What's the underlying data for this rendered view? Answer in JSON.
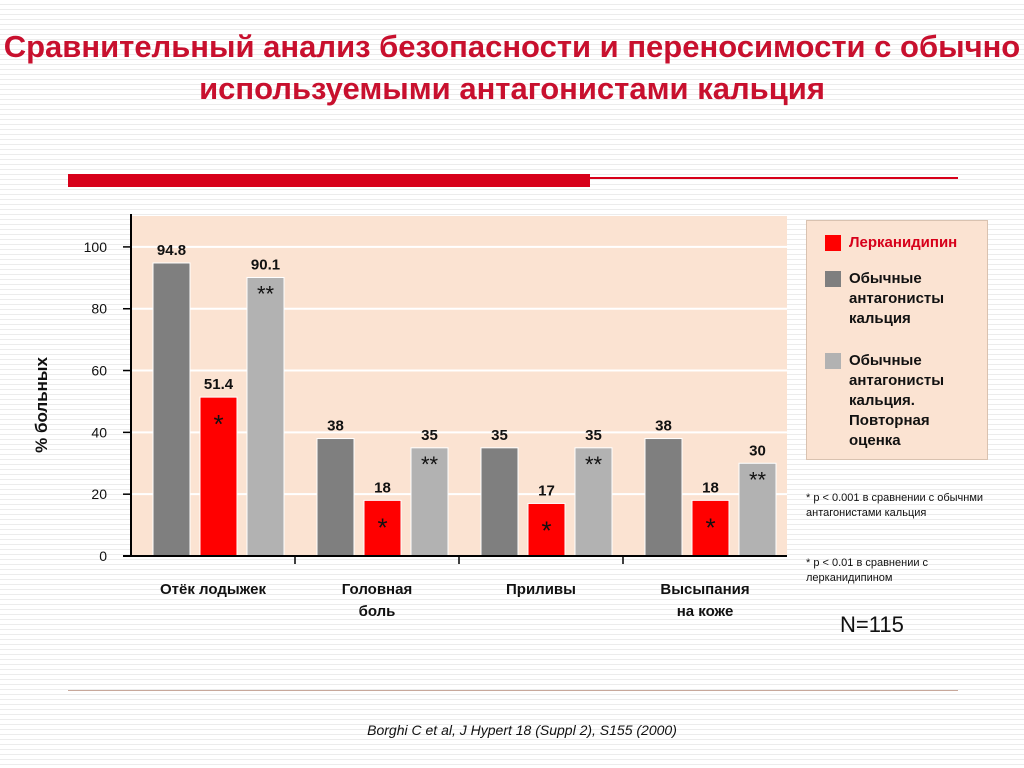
{
  "title": "Сравнительный анализ безопасности и переносимости с обычно используемыми антагонистами кальция",
  "chart_data": {
    "type": "bar",
    "ylabel": "% больных",
    "ylim": [
      0,
      110
    ],
    "yticks": [
      0,
      20,
      40,
      60,
      80,
      100
    ],
    "grid": true,
    "categories": [
      "Отёк лодыжек",
      "Головная боль",
      "Приливы",
      "Высыпания на коже"
    ],
    "series": [
      {
        "name": "Обычные антагонисты кальция",
        "color": "#7f7f7f",
        "values": [
          94.8,
          38,
          35,
          38
        ],
        "labels": [
          "94.8",
          "38",
          "35",
          "38"
        ],
        "markers": [
          "",
          "",
          "",
          ""
        ]
      },
      {
        "name": "Лерканидипин",
        "color": "#ff0000",
        "values": [
          51.4,
          18,
          17,
          18
        ],
        "labels": [
          "51.4",
          "18",
          "17",
          "18"
        ],
        "markers": [
          "*",
          "*",
          "*",
          "*"
        ]
      },
      {
        "name": "Обычные антагонисты кальция. Повторная оценка",
        "color": "#b2b2b2",
        "values": [
          90.1,
          35,
          35,
          30
        ],
        "labels": [
          "90.1",
          "35",
          "35",
          "30"
        ],
        "markers": [
          "**",
          "**",
          "**",
          "**"
        ]
      }
    ],
    "legend": {
      "placement": "right",
      "items": [
        {
          "label": "Лерканидипин",
          "color": "#ff0000"
        },
        {
          "label": "Обычные антагонисты кальция",
          "color": "#7f7f7f"
        },
        {
          "label": "Обычные антагонисты кальция. Повторная оценка",
          "color": "#b2b2b2"
        }
      ]
    },
    "category_labels": [
      [
        "Отёк лодыжек"
      ],
      [
        "Головная",
        "боль"
      ],
      [
        "Приливы"
      ],
      [
        "Высыпания",
        "на коже"
      ]
    ]
  },
  "notes": {
    "note1": "* p < 0.001 в сравнении с обычнми антагонистами кальция",
    "note2": "* p < 0.01 в сравнении с лерканидипином"
  },
  "n_label": "N=115",
  "citation": "Borghi C et al, J Hypert 18 (Suppl 2), S155 (2000)",
  "colors": {
    "accent": "#c8102e",
    "plot_bg": "#fbe3d2"
  }
}
